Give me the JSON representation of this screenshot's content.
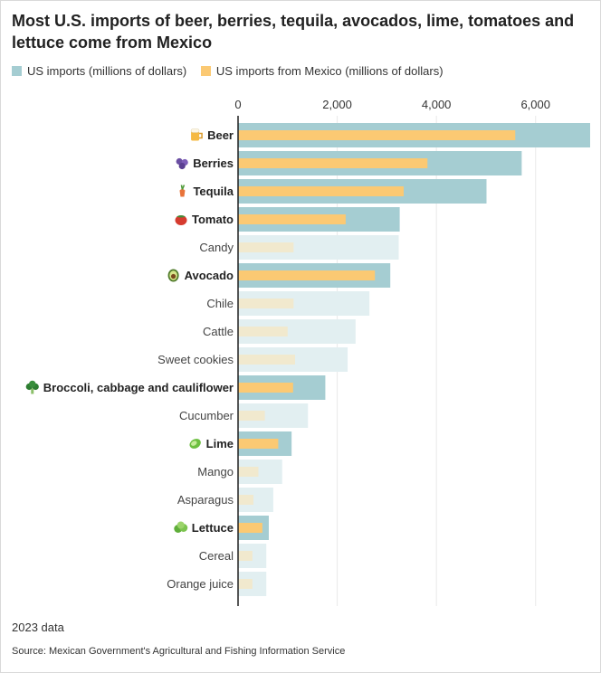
{
  "title": "Most U.S. imports of beer, berries, tequila, avocados, lime, tomatoes and lettuce come from Mexico",
  "legend": [
    {
      "label": "US imports (millions of dollars)",
      "color": "#a5cdd2"
    },
    {
      "label": "US imports from Mexico (millions of dollars)",
      "color": "#fbc973"
    }
  ],
  "note": "2023 data",
  "source": "Source: Mexican Government's Agricultural and Fishing Information Service",
  "colors": {
    "total_highlight": "#a5cdd2",
    "total_muted": "#e2eff1",
    "mexico_highlight": "#fbc973",
    "mexico_muted": "#f1e9ce",
    "grid": "#e8e8e8",
    "axis": "#222222"
  },
  "chart_data": {
    "type": "bar",
    "orientation": "horizontal",
    "title": "Most U.S. imports of beer, berries, tequila, avocados, lime, tomatoes and lettuce come from Mexico",
    "xlim": [
      0,
      7100
    ],
    "xticks": [
      0,
      2000,
      4000,
      6000
    ],
    "xtick_labels": [
      "0",
      "2,000",
      "4,000",
      "6,000"
    ],
    "grid": true,
    "legend_position": "top-left",
    "categories": [
      "Beer",
      "Berries",
      "Tequila",
      "Tomato",
      "Candy",
      "Avocado",
      "Chile",
      "Cattle",
      "Sweet cookies",
      "Broccoli, cabbage and cauliflower",
      "Cucumber",
      "Lime",
      "Mango",
      "Asparagus",
      "Lettuce",
      "Cereal",
      "Orange juice"
    ],
    "highlighted": [
      true,
      true,
      true,
      true,
      false,
      true,
      false,
      false,
      false,
      true,
      false,
      true,
      false,
      false,
      true,
      false,
      false
    ],
    "icons": [
      "beer-mug-icon",
      "berries-icon",
      "tequila-bottle-icon",
      "tomato-icon",
      "",
      "avocado-icon",
      "",
      "",
      "",
      "broccoli-icon",
      "",
      "lime-icon",
      "",
      "",
      "lettuce-icon",
      "",
      ""
    ],
    "series": [
      {
        "name": "US imports (millions of dollars)",
        "values": [
          7100,
          5720,
          5010,
          3260,
          3240,
          3070,
          2650,
          2370,
          2210,
          1760,
          1410,
          1080,
          890,
          710,
          620,
          570,
          570
        ]
      },
      {
        "name": "US imports from Mexico (millions of dollars)",
        "values": [
          5590,
          3820,
          3340,
          2170,
          1120,
          2760,
          1120,
          1000,
          1150,
          1110,
          540,
          810,
          410,
          310,
          490,
          290,
          290
        ]
      }
    ]
  }
}
